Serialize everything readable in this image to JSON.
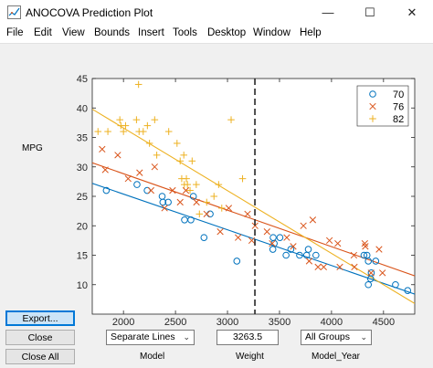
{
  "window": {
    "title": "ANOCOVA Prediction Plot",
    "minimize": "—",
    "maximize": "☐",
    "close": "✕"
  },
  "menu": [
    "File",
    "Edit",
    "View",
    "Bounds",
    "Insert",
    "Tools",
    "Desktop",
    "Window",
    "Help"
  ],
  "ylabel": "MPG",
  "buttons": {
    "export": "Export...",
    "close": "Close",
    "close_all": "Close All"
  },
  "controls": {
    "model_select": "Separate Lines",
    "weight_value": "3263.5",
    "group_select": "All Groups"
  },
  "captions": {
    "model": "Model",
    "weight": "Weight",
    "group": "Model_Year"
  },
  "colors": {
    "c70": "#0072BD",
    "c76": "#D95319",
    "c82": "#EDB120"
  },
  "chart_data": {
    "type": "scatter",
    "xlim": [
      1700,
      4800
    ],
    "ylim": [
      5,
      45
    ],
    "xticks": [
      "2000",
      "2500",
      "3000",
      "3500",
      "4000",
      "4500"
    ],
    "yticks": [
      "10",
      "15",
      "20",
      "25",
      "30",
      "35",
      "40",
      "45"
    ],
    "legend": {
      "position": "top-right",
      "entries": [
        "70",
        "76",
        "82"
      ]
    },
    "reference_x": 3263.5,
    "series": [
      {
        "name": "70",
        "marker": "circle",
        "color": "#0072BD",
        "points": [
          [
            1835,
            26
          ],
          [
            2130,
            27
          ],
          [
            2228,
            26
          ],
          [
            2379,
            24
          ],
          [
            2372,
            25
          ],
          [
            2430,
            24
          ],
          [
            2587,
            21
          ],
          [
            2648,
            21
          ],
          [
            2672,
            25
          ],
          [
            2774,
            18
          ],
          [
            2833,
            22
          ],
          [
            3090,
            14
          ],
          [
            3439,
            18
          ],
          [
            3563,
            15
          ],
          [
            3436,
            16
          ],
          [
            3449,
            17
          ],
          [
            3504,
            18
          ],
          [
            3609,
            16
          ],
          [
            3693,
            15
          ],
          [
            3761,
            15
          ],
          [
            3850,
            15
          ],
          [
            3777,
            16
          ],
          [
            4312,
            15
          ],
          [
            4341,
            15
          ],
          [
            4354,
            10
          ],
          [
            4376,
            11
          ],
          [
            4382,
            12
          ],
          [
            4425,
            14
          ],
          [
            4615,
            10
          ],
          [
            4732,
            9
          ],
          [
            4354,
            14
          ]
        ],
        "fit": [
          [
            1700,
            27.2
          ],
          [
            4800,
            8.4
          ]
        ]
      },
      {
        "name": "76",
        "marker": "x",
        "color": "#D95319",
        "points": [
          [
            1795,
            33
          ],
          [
            1825,
            29.5
          ],
          [
            1945,
            32
          ],
          [
            2045,
            28
          ],
          [
            2155,
            29
          ],
          [
            2265,
            26
          ],
          [
            2300,
            30
          ],
          [
            2395,
            23
          ],
          [
            2472,
            26
          ],
          [
            2545,
            24
          ],
          [
            2600,
            26
          ],
          [
            2702,
            24
          ],
          [
            2800,
            22
          ],
          [
            2930,
            19
          ],
          [
            3012,
            23
          ],
          [
            3102,
            18
          ],
          [
            3193,
            22
          ],
          [
            3233,
            17.5
          ],
          [
            3265,
            20
          ],
          [
            3380,
            19
          ],
          [
            3430,
            17
          ],
          [
            3570,
            18
          ],
          [
            3632,
            16.5
          ],
          [
            3730,
            20
          ],
          [
            3785,
            14
          ],
          [
            3820,
            21
          ],
          [
            3870,
            13
          ],
          [
            3925,
            13
          ],
          [
            3980,
            17.5
          ],
          [
            4060,
            17
          ],
          [
            4080,
            13
          ],
          [
            4220,
            13
          ],
          [
            4215,
            15
          ],
          [
            4320,
            17
          ],
          [
            4380,
            12
          ],
          [
            4457,
            16
          ],
          [
            4490,
            12
          ],
          [
            4325,
            16.5
          ]
        ],
        "fit": [
          [
            1700,
            30.7
          ],
          [
            4800,
            11.5
          ]
        ]
      },
      {
        "name": "82",
        "marker": "plus",
        "color": "#EDB120",
        "points": [
          [
            1755,
            36
          ],
          [
            1850,
            36
          ],
          [
            1965,
            38
          ],
          [
            1975,
            37
          ],
          [
            2000,
            36
          ],
          [
            2020,
            37
          ],
          [
            2125,
            38
          ],
          [
            2150,
            36
          ],
          [
            2145,
            44
          ],
          [
            2190,
            36
          ],
          [
            2230,
            37
          ],
          [
            2250,
            34
          ],
          [
            2300,
            38
          ],
          [
            2320,
            32
          ],
          [
            2435,
            36
          ],
          [
            2515,
            34
          ],
          [
            2545,
            31
          ],
          [
            2560,
            28
          ],
          [
            2580,
            32
          ],
          [
            2585,
            27
          ],
          [
            2605,
            28
          ],
          [
            2615,
            27
          ],
          [
            2640,
            26
          ],
          [
            2660,
            31
          ],
          [
            2700,
            27
          ],
          [
            2730,
            22
          ],
          [
            2800,
            24
          ],
          [
            2870,
            25
          ],
          [
            2915,
            27
          ],
          [
            2945,
            23
          ],
          [
            3035,
            38
          ],
          [
            3145,
            28
          ]
        ],
        "fit": [
          [
            1700,
            39.8
          ],
          [
            4800,
            6.8
          ]
        ]
      }
    ]
  }
}
